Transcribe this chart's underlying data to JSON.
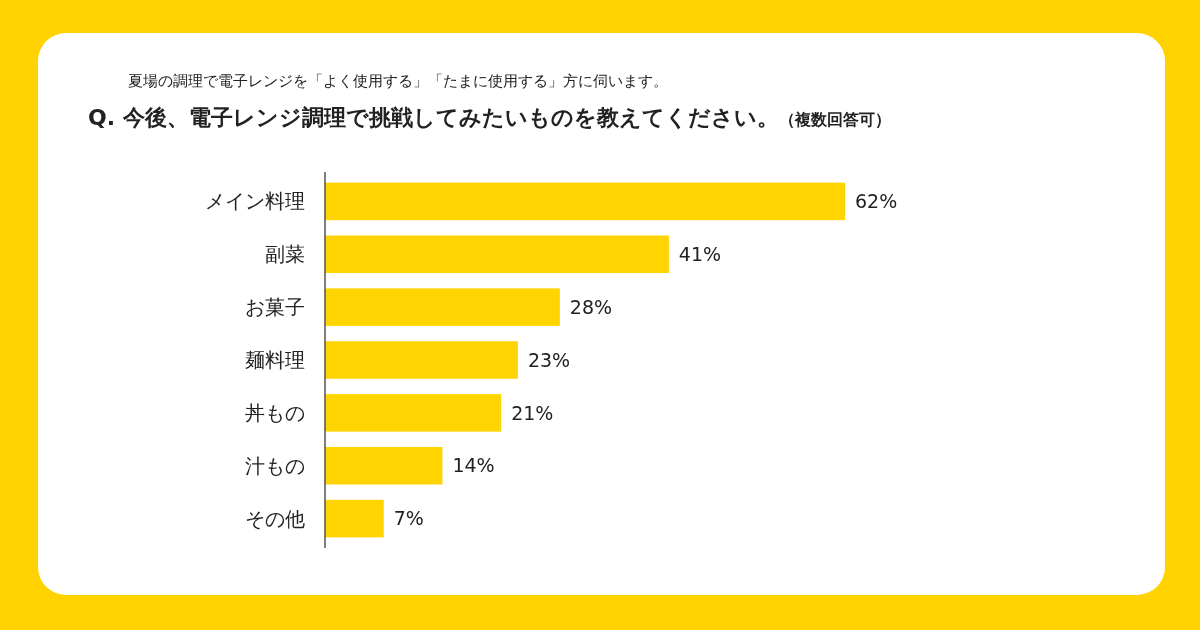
{
  "chart_data": {
    "type": "bar",
    "orientation": "horizontal",
    "subtitle": "夏場の調理で電子レンジを「よく使用する」「たまに使用する」方に伺います。",
    "title": "Q. 今後、電子レンジ調理で挑戦してみたいものを教えてください。",
    "annotations": [
      "（複数回答可）"
    ],
    "categories": [
      "メイン料理",
      "副菜",
      "お菓子",
      "麺料理",
      "丼もの",
      "汁もの",
      "その他"
    ],
    "values": [
      62,
      41,
      28,
      23,
      21,
      14,
      7
    ],
    "value_labels": [
      "62%",
      "41%",
      "28%",
      "23%",
      "21%",
      "14%",
      "7%"
    ],
    "color": "#ffd400"
  }
}
